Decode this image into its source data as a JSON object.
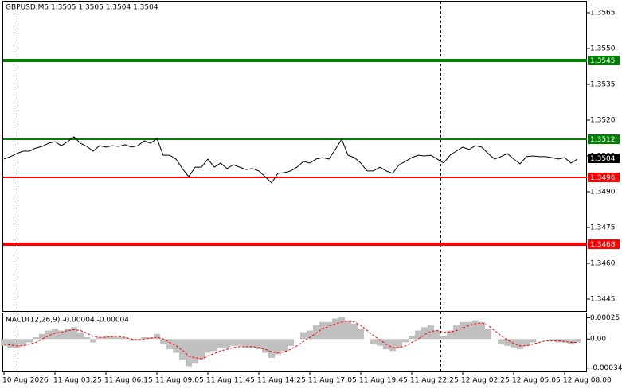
{
  "chart_data": [
    {
      "type": "line",
      "title": "GBPUSD,M5 1.3505 1.3505 1.3504 1.3504",
      "categories": [
        "10 Aug 2026",
        null,
        null,
        null,
        null,
        null,
        null,
        null,
        "11 Aug 03:25",
        null,
        null,
        null,
        null,
        null,
        null,
        null,
        "11 Aug 06:15",
        null,
        null,
        null,
        null,
        null,
        null,
        null,
        "11 Aug 09:05",
        null,
        null,
        null,
        null,
        null,
        null,
        null,
        "11 Aug 11:45",
        null,
        null,
        null,
        null,
        null,
        null,
        null,
        "11 Aug 14:25",
        null,
        null,
        null,
        null,
        null,
        null,
        null,
        "11 Aug 17:05",
        null,
        null,
        null,
        null,
        null,
        null,
        null,
        "11 Aug 19:45",
        null,
        null,
        null,
        null,
        null,
        null,
        null,
        "11 Aug 22:25",
        null,
        null,
        null,
        null,
        null,
        null,
        null,
        "12 Aug 02:25",
        null,
        null,
        null,
        null,
        null,
        null,
        null,
        "12 Aug 05:05",
        null,
        null,
        null,
        null,
        null,
        null,
        null,
        "12 Aug 08:00",
        null,
        null
      ],
      "values": [
        1.35037,
        1.35047,
        1.3506,
        1.3507,
        1.3507,
        1.35083,
        1.3509,
        1.35103,
        1.3511,
        1.35093,
        1.3511,
        1.3513,
        1.35103,
        1.3509,
        1.3507,
        1.35093,
        1.35087,
        1.35093,
        1.3509,
        1.35097,
        1.35087,
        1.35093,
        1.35113,
        1.35103,
        1.35123,
        1.35053,
        1.35053,
        1.35037,
        1.34997,
        1.34963,
        1.35003,
        1.35003,
        1.35037,
        1.35003,
        1.3502,
        1.34997,
        1.35013,
        1.35003,
        1.34993,
        1.34997,
        1.34987,
        1.34963,
        1.34937,
        1.34977,
        1.3498,
        1.34987,
        1.35003,
        1.35027,
        1.3502,
        1.35037,
        1.35043,
        1.35037,
        1.35077,
        1.3512,
        1.35053,
        1.35043,
        1.3502,
        1.34987,
        1.34987,
        1.35003,
        1.34987,
        1.34977,
        1.35013,
        1.35027,
        1.35043,
        1.35053,
        1.3505,
        1.35053,
        1.35037,
        1.3502,
        1.35053,
        1.3507,
        1.35087,
        1.35077,
        1.35093,
        1.35087,
        1.3506,
        1.35037,
        1.35047,
        1.3506,
        1.35037,
        1.35017,
        1.35047,
        1.3505,
        1.35047,
        1.35047,
        1.35043,
        1.35037,
        1.35043,
        1.3502,
        1.35037
      ],
      "color": "#000000",
      "ylim": [
        1.344,
        1.357
      ],
      "yticks": [
        {
          "value": 1.3565,
          "label": "1.3565"
        },
        {
          "value": 1.355,
          "label": "1.3550"
        },
        {
          "value": 1.3535,
          "label": "1.3535"
        },
        {
          "value": 1.352,
          "label": "1.3520"
        },
        {
          "value": 1.3505,
          "label": "1.3505"
        },
        {
          "value": 1.349,
          "label": "1.3490"
        },
        {
          "value": 1.3475,
          "label": "1.3475"
        },
        {
          "value": 1.346,
          "label": "1.3460"
        },
        {
          "value": 1.3445,
          "label": "1.3445"
        }
      ],
      "levels": [
        {
          "value": 1.3545,
          "color": "#008000"
        },
        {
          "value": 1.3512,
          "color": "#008000"
        },
        {
          "value": 1.3496,
          "color": "#ff0000"
        },
        {
          "value": 1.3468,
          "color": "#ff0000"
        }
      ],
      "last_price": 1.3504
    },
    {
      "type": "macd",
      "title": "MACD(12,26,9) -0.00004 -0.00004",
      "ylim": [
        -0.00038,
        0.00031
      ],
      "yticks": [
        0.00025,
        {
          "value": 0,
          "label": "0.00"
        },
        -0.00034
      ],
      "histogram": {
        "color": "#c0c0c0",
        "values": [
          -8e-05,
          -0.0001,
          -0.0001,
          -8e-05,
          -4e-05,
          2e-05,
          6e-05,
          0.0001,
          0.00012,
          0.0001,
          0.00012,
          0.00014,
          8e-05,
          2e-05,
          -4e-05,
          2e-05,
          4e-05,
          4e-05,
          2e-05,
          2e-05,
          -2e-05,
          -2e-05,
          2e-05,
          2e-05,
          6e-05,
          -6e-05,
          -0.00012,
          -0.00016,
          -0.00024,
          -0.00032,
          -0.00028,
          -0.00024,
          -0.00016,
          -0.00014,
          -0.0001,
          -0.0001,
          -8e-05,
          -8e-05,
          -0.0001,
          -0.0001,
          -0.00012,
          -0.00016,
          -0.00022,
          -0.00018,
          -0.00014,
          -8e-05,
          0,
          8e-05,
          0.0001,
          0.00016,
          0.0002,
          0.0002,
          0.00024,
          0.00026,
          0.00022,
          0.00018,
          0.00012,
          0,
          -6e-05,
          -8e-05,
          -0.00012,
          -0.00014,
          -0.0001,
          -4e-05,
          4e-05,
          0.0001,
          0.00014,
          0.00016,
          0.0001,
          4e-05,
          0.0001,
          0.00016,
          0.0002,
          0.0002,
          0.00022,
          0.0002,
          0.00012,
          0,
          -6e-05,
          -8e-05,
          -0.0001,
          -0.00012,
          -8e-05,
          -4e-05,
          0,
          0,
          -2e-05,
          -4e-05,
          -4e-05,
          -6e-05,
          -4e-05
        ]
      },
      "signal": {
        "color": "#ff0000",
        "values": [
          -6e-05,
          -7e-05,
          -8e-05,
          -8e-05,
          -6e-05,
          -4e-05,
          0,
          4e-05,
          7e-05,
          8e-05,
          0.0001,
          0.00011,
          0.0001,
          7e-05,
          3e-05,
          2e-05,
          2e-05,
          3e-05,
          3e-05,
          2e-05,
          0,
          -1e-05,
          0,
          1e-05,
          2e-05,
          0,
          -4e-05,
          -8e-05,
          -0.00013,
          -0.0002,
          -0.00022,
          -0.00023,
          -0.0002,
          -0.00017,
          -0.00014,
          -0.00012,
          -0.0001,
          -9e-05,
          -9e-05,
          -9e-05,
          -0.0001,
          -0.00012,
          -0.00015,
          -0.00016,
          -0.00015,
          -0.00012,
          -8e-05,
          -3e-05,
          2e-05,
          7e-05,
          0.00012,
          0.00015,
          0.00018,
          0.0002,
          0.00021,
          0.0002,
          0.00016,
          0.0001,
          4e-05,
          -1e-05,
          -6e-05,
          -0.0001,
          -0.0001,
          -8e-05,
          -4e-05,
          0,
          5e-05,
          9e-05,
          0.0001,
          8e-05,
          8e-05,
          0.0001,
          0.00013,
          0.00016,
          0.00018,
          0.00019,
          0.00016,
          0.0001,
          4e-05,
          -1e-05,
          -5e-05,
          -8e-05,
          -8e-05,
          -6e-05,
          -4e-05,
          -2e-05,
          -2e-05,
          -2e-05,
          -3e-05,
          -4e-05,
          -4e-05
        ]
      }
    }
  ]
}
